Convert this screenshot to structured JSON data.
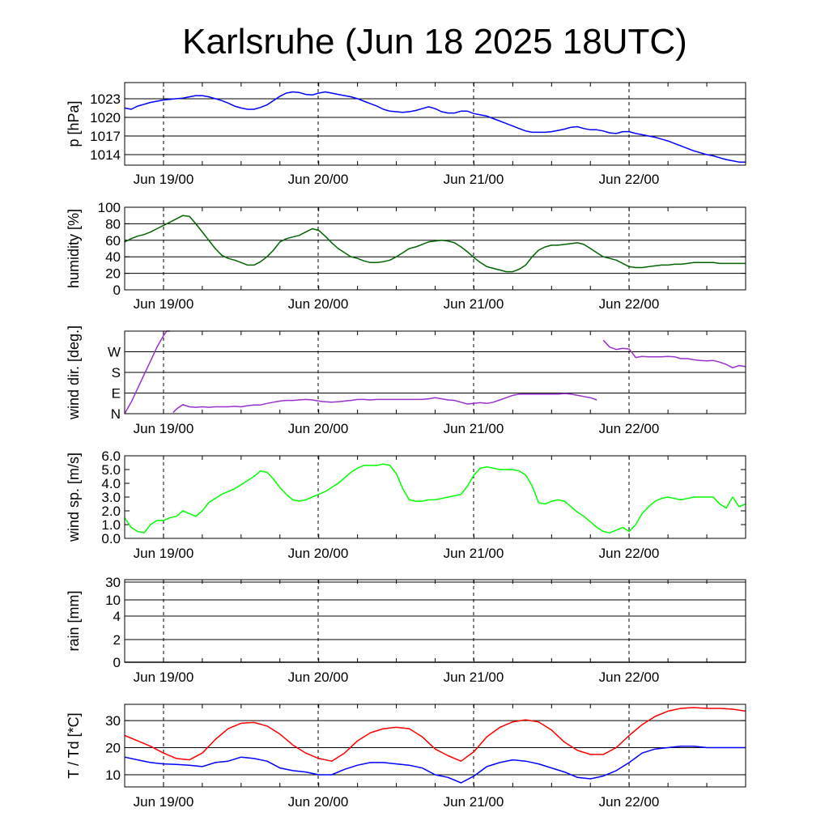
{
  "title": "Karlsruhe (Jun 18 2025 18UTC)",
  "x_tick_labels": [
    "Jun 19/00",
    "Jun 20/00",
    "Jun 21/00",
    "Jun 22/00"
  ],
  "chart_data": [
    {
      "type": "line",
      "ylabel": "p [hPa]",
      "ylim": [
        1012.3,
        1025.6
      ],
      "yticks": [
        1014,
        1017,
        1020,
        1023
      ],
      "yticklabels": [
        "1014",
        "1017",
        "1020",
        "1023"
      ],
      "grid": true,
      "series": [
        {
          "color": "#0000ff",
          "x": [
            0,
            1,
            2,
            3,
            4,
            5,
            6,
            7,
            8,
            9,
            10,
            11,
            12,
            13,
            14,
            15,
            16,
            17,
            18,
            19,
            20,
            21,
            22,
            23,
            24,
            25,
            26,
            27,
            28,
            29,
            30,
            31,
            32,
            33,
            34,
            35,
            36,
            37,
            38,
            39,
            40,
            41,
            42,
            43,
            44,
            45,
            46,
            47,
            48,
            49,
            50,
            51,
            52,
            53,
            54,
            55,
            56,
            57,
            58,
            59,
            60,
            61,
            62,
            63,
            64,
            65,
            66,
            67,
            68,
            69,
            70,
            71,
            72,
            73,
            74,
            75,
            76,
            77,
            78,
            79,
            80,
            81,
            82,
            83,
            84,
            85,
            86,
            87,
            88,
            89,
            90,
            91,
            92,
            93,
            94,
            95,
            96
          ],
          "y": [
            1021.5,
            1021.3,
            1021.8,
            1022.1,
            1022.4,
            1022.6,
            1022.8,
            1022.9,
            1023.0,
            1023.1,
            1023.3,
            1023.5,
            1023.5,
            1023.3,
            1023.0,
            1022.7,
            1022.3,
            1021.8,
            1021.5,
            1021.3,
            1021.3,
            1021.6,
            1022.0,
            1022.7,
            1023.4,
            1023.9,
            1024.1,
            1024.0,
            1023.7,
            1023.6,
            1023.9,
            1024.1,
            1023.9,
            1023.7,
            1023.5,
            1023.3,
            1023.0,
            1022.6,
            1022.2,
            1021.8,
            1021.3,
            1021.0,
            1020.9,
            1020.8,
            1020.9,
            1021.1,
            1021.4,
            1021.7,
            1021.4,
            1020.9,
            1020.7,
            1020.7,
            1021.0,
            1021.0,
            1020.6,
            1020.4,
            1020.2,
            1019.8,
            1019.4,
            1019.0,
            1018.6,
            1018.2,
            1017.8,
            1017.6,
            1017.6,
            1017.6,
            1017.7,
            1017.9,
            1018.1,
            1018.4,
            1018.5,
            1018.2,
            1018.0,
            1018.0,
            1017.8,
            1017.5,
            1017.4,
            1017.7,
            1017.7,
            1017.4,
            1017.2,
            1017.0,
            1016.8,
            1016.5,
            1016.2,
            1015.8,
            1015.4,
            1015.0,
            1014.6,
            1014.3,
            1014.0,
            1013.8,
            1013.5,
            1013.2,
            1013.0,
            1012.8,
            1012.8
          ]
        }
      ]
    },
    {
      "type": "line",
      "ylabel": "humidity [%]",
      "ylim": [
        0,
        100
      ],
      "yticks": [
        0,
        20,
        40,
        60,
        80,
        100
      ],
      "yticklabels": [
        "0",
        "20",
        "40",
        "60",
        "80",
        "100"
      ],
      "grid": true,
      "series": [
        {
          "color": "#006400",
          "x": [
            0,
            1,
            2,
            3,
            4,
            5,
            6,
            7,
            8,
            9,
            10,
            11,
            12,
            13,
            14,
            15,
            16,
            17,
            18,
            19,
            20,
            21,
            22,
            23,
            24,
            25,
            26,
            27,
            28,
            29,
            30,
            31,
            32,
            33,
            34,
            35,
            36,
            37,
            38,
            39,
            40,
            41,
            42,
            43,
            44,
            45,
            46,
            47,
            48,
            49,
            50,
            51,
            52,
            53,
            54,
            55,
            56,
            57,
            58,
            59,
            60,
            61,
            62,
            63,
            64,
            65,
            66,
            67,
            68,
            69,
            70,
            71,
            72,
            73,
            74,
            75,
            76,
            77,
            78,
            79,
            80,
            81,
            82,
            83,
            84,
            85,
            86,
            87,
            88,
            89,
            90,
            91,
            92,
            93,
            94,
            95,
            96
          ],
          "y": [
            58,
            62,
            65,
            67,
            70,
            74,
            78,
            82,
            86,
            90,
            89,
            80,
            70,
            60,
            50,
            42,
            38,
            36,
            33,
            30,
            30,
            34,
            40,
            48,
            58,
            62,
            64,
            66,
            70,
            74,
            72,
            65,
            57,
            50,
            45,
            40,
            38,
            35,
            33,
            33,
            34,
            36,
            40,
            45,
            50,
            52,
            55,
            58,
            59,
            60,
            59,
            57,
            52,
            46,
            39,
            33,
            28,
            26,
            24,
            22,
            22,
            25,
            30,
            40,
            48,
            52,
            54,
            54,
            55,
            56,
            57,
            55,
            50,
            45,
            40,
            38,
            36,
            32,
            28,
            27,
            27,
            28,
            29,
            30,
            30,
            31,
            31,
            32,
            33,
            33,
            33,
            33,
            32,
            32,
            32,
            32,
            32
          ]
        }
      ]
    },
    {
      "type": "scatter",
      "ylabel": "wind dir. [deg.]",
      "ylim": [
        0,
        360
      ],
      "yticks": [
        0,
        90,
        180,
        270
      ],
      "yticklabels": [
        "N",
        "E",
        "S",
        "W"
      ],
      "grid": true,
      "series": [
        {
          "color": "#9932cc",
          "x": [
            0,
            1,
            2,
            3,
            4,
            5,
            6,
            6.5,
            7,
            7.5,
            8,
            9,
            10,
            11,
            12,
            13,
            14,
            15,
            16,
            17,
            18,
            19,
            20,
            21,
            22,
            23,
            24,
            25,
            26,
            27,
            28,
            29,
            30,
            31,
            32,
            33,
            34,
            35,
            36,
            37,
            38,
            39,
            40,
            41,
            42,
            43,
            44,
            45,
            46,
            47,
            48,
            49,
            50,
            51,
            52,
            53,
            54,
            55,
            56,
            57,
            58,
            59,
            60,
            61,
            62,
            63,
            64,
            65,
            66,
            67,
            68,
            69,
            70,
            71,
            72,
            73,
            74,
            75,
            76,
            77,
            78,
            79,
            80,
            81,
            82,
            83,
            84,
            85,
            86,
            87,
            88,
            89,
            90,
            91,
            92,
            93,
            94,
            95,
            96
          ],
          "y": [
            0,
            50,
            110,
            170,
            230,
            290,
            340,
            360,
            360,
            5,
            20,
            40,
            30,
            28,
            30,
            28,
            30,
            30,
            30,
            32,
            30,
            35,
            38,
            38,
            45,
            50,
            55,
            58,
            58,
            60,
            62,
            60,
            55,
            52,
            50,
            52,
            55,
            58,
            62,
            62,
            60,
            62,
            62,
            62,
            62,
            62,
            62,
            62,
            62,
            65,
            70,
            65,
            60,
            58,
            50,
            42,
            45,
            48,
            45,
            50,
            60,
            70,
            80,
            85,
            85,
            85,
            85,
            85,
            85,
            85,
            88,
            85,
            80,
            75,
            70,
            60,
            320,
            290,
            280,
            285,
            282,
            245,
            250,
            248,
            248,
            248,
            250,
            248,
            240,
            240,
            235,
            232,
            230,
            232,
            225,
            215,
            200,
            210,
            205
          ]
        }
      ]
    },
    {
      "type": "line",
      "ylabel": "wind sp. [m/s]",
      "ylim": [
        0,
        6
      ],
      "yticks": [
        0,
        1,
        2,
        3,
        4,
        5,
        6
      ],
      "yticklabels": [
        "0.0",
        "1.0",
        "2.0",
        "3.0",
        "4.0",
        "5.0",
        "6.0"
      ],
      "grid": false,
      "series": [
        {
          "color": "#00ff00",
          "x": [
            0,
            1,
            2,
            3,
            4,
            5,
            6,
            7,
            8,
            9,
            10,
            11,
            12,
            13,
            14,
            15,
            16,
            17,
            18,
            19,
            20,
            21,
            22,
            23,
            24,
            25,
            26,
            27,
            28,
            29,
            30,
            31,
            32,
            33,
            34,
            35,
            36,
            37,
            38,
            39,
            40,
            41,
            42,
            43,
            44,
            45,
            46,
            47,
            48,
            49,
            50,
            51,
            52,
            53,
            54,
            55,
            56,
            57,
            58,
            59,
            60,
            61,
            62,
            63,
            64,
            65,
            66,
            67,
            68,
            69,
            70,
            71,
            72,
            73,
            74,
            75,
            76,
            77,
            78,
            79,
            80,
            81,
            82,
            83,
            84,
            85,
            86,
            87,
            88,
            89,
            90,
            91,
            92,
            93,
            94,
            95,
            96
          ],
          "y": [
            1.5,
            0.8,
            0.5,
            0.4,
            1.0,
            1.3,
            1.3,
            1.5,
            1.6,
            2.0,
            1.8,
            1.6,
            2.0,
            2.6,
            2.9,
            3.2,
            3.4,
            3.6,
            3.9,
            4.2,
            4.5,
            4.9,
            4.8,
            4.3,
            3.7,
            3.2,
            2.8,
            2.7,
            2.8,
            3.0,
            3.2,
            3.4,
            3.7,
            4.0,
            4.4,
            4.8,
            5.1,
            5.3,
            5.3,
            5.3,
            5.4,
            5.3,
            4.7,
            3.6,
            2.8,
            2.7,
            2.7,
            2.8,
            2.8,
            2.9,
            3.0,
            3.1,
            3.2,
            3.8,
            4.6,
            5.1,
            5.2,
            5.1,
            5.0,
            5.0,
            5.0,
            4.9,
            4.6,
            3.8,
            2.6,
            2.5,
            2.7,
            2.8,
            2.7,
            2.3,
            1.9,
            1.6,
            1.2,
            0.8,
            0.5,
            0.4,
            0.6,
            0.8,
            0.5,
            1.0,
            1.8,
            2.3,
            2.7,
            2.9,
            3.0,
            2.9,
            2.8,
            2.9,
            3.0,
            3.0,
            3.0,
            3.0,
            2.5,
            2.2,
            3.0,
            2.3,
            2.5
          ]
        }
      ]
    },
    {
      "type": "line",
      "ylabel": "rain [mm]",
      "ylim": [
        0,
        32
      ],
      "yticks": [
        0,
        2,
        4,
        10,
        30
      ],
      "yticklabels": [
        "0",
        "2",
        "4",
        "10",
        "30"
      ],
      "grid": true,
      "series": [
        {
          "color": "#000000",
          "x": [
            0,
            96
          ],
          "y": [
            0,
            0
          ]
        }
      ]
    },
    {
      "type": "line",
      "ylabel": "T / Td [*C]",
      "ylim": [
        5.5,
        36
      ],
      "yticks": [
        10,
        20,
        30
      ],
      "yticklabels": [
        "10",
        "20",
        "30"
      ],
      "grid": true,
      "series": [
        {
          "color": "#ff0000",
          "x": [
            0,
            2,
            4,
            6,
            8,
            10,
            12,
            14,
            16,
            18,
            20,
            22,
            24,
            26,
            28,
            30,
            32,
            34,
            36,
            38,
            40,
            42,
            44,
            46,
            48,
            50,
            52,
            54,
            56,
            58,
            60,
            62,
            64,
            66,
            68,
            70,
            72,
            74,
            76,
            78,
            80,
            82,
            84,
            86,
            88,
            90,
            92,
            94,
            96
          ],
          "y": [
            24.5,
            22.5,
            20.5,
            18,
            16,
            15.5,
            18,
            23,
            27,
            29,
            29.3,
            28,
            25,
            21,
            18,
            16,
            15,
            18,
            22.5,
            25.5,
            27,
            27.5,
            27,
            24,
            19.5,
            17,
            15,
            18.5,
            24,
            27.5,
            29.5,
            30.3,
            29.5,
            26.5,
            22,
            19,
            17.5,
            17.5,
            20,
            24.5,
            28.5,
            31.5,
            33.5,
            34.5,
            34.8,
            34.5,
            34.5,
            34.2,
            33.5
          ]
        },
        {
          "color": "#0000ff",
          "x": [
            0,
            2,
            4,
            6,
            8,
            10,
            12,
            14,
            16,
            18,
            20,
            22,
            24,
            26,
            28,
            30,
            32,
            34,
            36,
            38,
            40,
            42,
            44,
            46,
            48,
            50,
            52,
            54,
            56,
            58,
            60,
            62,
            64,
            66,
            68,
            70,
            72,
            74,
            76,
            78,
            80,
            82,
            84,
            86,
            88,
            90,
            92,
            94,
            96
          ],
          "y": [
            16.5,
            15.5,
            14.5,
            14,
            13.8,
            13.5,
            13,
            14.5,
            15,
            16.5,
            16,
            15,
            12.5,
            11.5,
            11,
            10,
            10,
            12,
            13.5,
            14.5,
            14.5,
            14,
            13.5,
            12.5,
            10,
            9,
            7,
            9.5,
            13,
            14.5,
            15.5,
            15,
            14,
            12.5,
            11,
            9,
            8.5,
            9.5,
            11.5,
            14.5,
            18,
            19.5,
            20,
            20.5,
            20.5,
            20,
            20,
            20,
            20
          ]
        }
      ]
    }
  ]
}
